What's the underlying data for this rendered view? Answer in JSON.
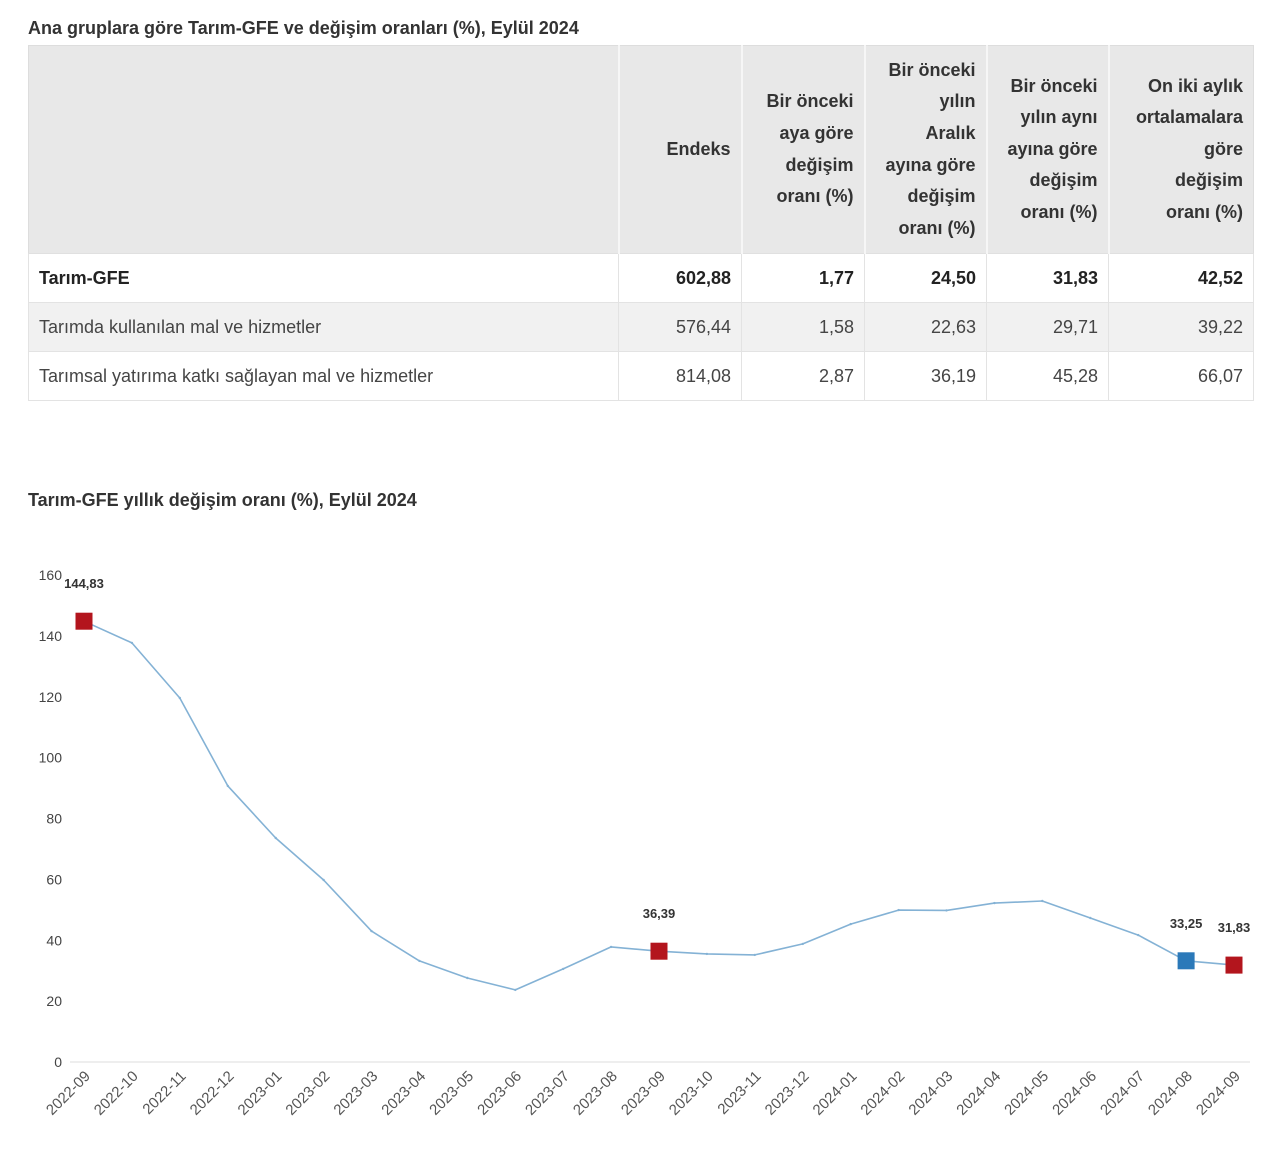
{
  "chart_data": [
    {
      "type": "table",
      "title": "Ana gruplara göre Tarım-GFE ve değişim oranları (%), Eylül 2024",
      "headers": [
        {
          "lines": [
            "Endeks"
          ]
        },
        {
          "lines": [
            "Bir önceki",
            "aya göre",
            "değişim",
            "oranı (%)"
          ]
        },
        {
          "lines": [
            "Bir önceki",
            "yılın",
            "Aralık",
            "ayına göre",
            "değişim",
            "oranı (%)"
          ]
        },
        {
          "lines": [
            "Bir önceki",
            "yılın aynı",
            "ayına göre",
            "değişim",
            "oranı (%)"
          ]
        },
        {
          "lines": [
            "On iki aylık",
            "ortalamalara",
            "göre",
            "değişim",
            "oranı (%)"
          ]
        }
      ],
      "rows": [
        {
          "label": "Tarım-GFE",
          "values": [
            "602,88",
            "1,77",
            "24,50",
            "31,83",
            "42,52"
          ]
        },
        {
          "label": "Tarımda kullanılan mal ve hizmetler",
          "values": [
            "576,44",
            "1,58",
            "22,63",
            "29,71",
            "39,22"
          ]
        },
        {
          "label": "Tarımsal yatırıma katkı sağlayan mal ve hizmetler",
          "values": [
            "814,08",
            "2,87",
            "36,19",
            "45,28",
            "66,07"
          ]
        }
      ]
    },
    {
      "type": "line",
      "title": "Tarım-GFE yıllık değişim oranı (%), Eylül 2024",
      "xlabel": "",
      "ylabel": "",
      "categories": [
        "2022-09",
        "2022-10",
        "2022-11",
        "2022-12",
        "2023-01",
        "2023-02",
        "2023-03",
        "2023-04",
        "2023-05",
        "2023-06",
        "2023-07",
        "2023-08",
        "2023-09",
        "2023-10",
        "2023-11",
        "2023-12",
        "2024-01",
        "2024-02",
        "2024-03",
        "2024-04",
        "2024-05",
        "2024-06",
        "2024-07",
        "2024-08",
        "2024-09"
      ],
      "values": [
        144.83,
        137.7,
        119.6,
        90.7,
        73.6,
        59.8,
        43.0,
        33.2,
        27.6,
        23.7,
        30.6,
        37.8,
        36.39,
        35.5,
        35.2,
        38.8,
        45.3,
        49.9,
        49.8,
        52.2,
        52.9,
        47.3,
        41.7,
        33.25,
        31.83
      ],
      "ylim": [
        0,
        160
      ],
      "yticks": [
        0,
        20,
        40,
        60,
        80,
        100,
        120,
        140,
        160
      ],
      "grid": false,
      "line_color": "#84b2d5",
      "highlighted_points": [
        {
          "category": "2022-09",
          "label": "144,83",
          "color": "#b3151d"
        },
        {
          "category": "2023-09",
          "label": "36,39",
          "color": "#b3151d"
        },
        {
          "category": "2024-08",
          "label": "33,25",
          "color": "#2b79b9"
        },
        {
          "category": "2024-09",
          "label": "31,83",
          "color": "#b3151d"
        }
      ]
    }
  ]
}
